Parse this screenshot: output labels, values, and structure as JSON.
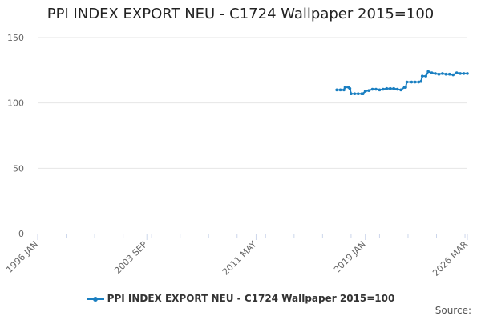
{
  "chart_data": {
    "type": "line",
    "title": "PPI INDEX EXPORT NEU - C1724 Wallpaper 2015=100",
    "xlabel": "",
    "ylabel": "",
    "ylim": [
      0,
      150
    ],
    "y_ticks": [
      0,
      50,
      100,
      150
    ],
    "x_ticks": [
      "1996 JAN",
      "2003 SEP",
      "2011 MAY",
      "2019 JAN",
      "2026 MAR"
    ],
    "grid": true,
    "legend_position": "bottom",
    "series": [
      {
        "name": "PPI INDEX EXPORT NEU - C1724 Wallpaper 2015=100",
        "color": "#1a7fc1",
        "points": [
          [
            "2017-01",
            110
          ],
          [
            "2017-04",
            110
          ],
          [
            "2017-07",
            110
          ],
          [
            "2017-08",
            112
          ],
          [
            "2017-11",
            112
          ],
          [
            "2017-12",
            111
          ],
          [
            "2018-01",
            107
          ],
          [
            "2018-04",
            107
          ],
          [
            "2018-07",
            107
          ],
          [
            "2018-10",
            107
          ],
          [
            "2018-11",
            107
          ],
          [
            "2019-01",
            109
          ],
          [
            "2019-04",
            109.5
          ],
          [
            "2019-07",
            110.5
          ],
          [
            "2019-10",
            110.5
          ],
          [
            "2020-01",
            110
          ],
          [
            "2020-04",
            110.5
          ],
          [
            "2020-07",
            111
          ],
          [
            "2020-10",
            111
          ],
          [
            "2021-01",
            111
          ],
          [
            "2021-04",
            110.5
          ],
          [
            "2021-07",
            110
          ],
          [
            "2021-10",
            112
          ],
          [
            "2021-11",
            112
          ],
          [
            "2021-12",
            116
          ],
          [
            "2022-04",
            116
          ],
          [
            "2022-07",
            116
          ],
          [
            "2022-10",
            116
          ],
          [
            "2022-12",
            116.5
          ],
          [
            "2023-01",
            120.5
          ],
          [
            "2023-04",
            120.5
          ],
          [
            "2023-06",
            124
          ],
          [
            "2023-09",
            123
          ],
          [
            "2023-12",
            122.5
          ],
          [
            "2024-03",
            122
          ],
          [
            "2024-06",
            122.5
          ],
          [
            "2024-09",
            122
          ],
          [
            "2024-12",
            122
          ],
          [
            "2025-03",
            121.5
          ],
          [
            "2025-06",
            123
          ],
          [
            "2025-09",
            122.5
          ],
          [
            "2025-12",
            122.5
          ],
          [
            "2026-03",
            122.5
          ]
        ]
      }
    ]
  },
  "source_label": "Source:"
}
